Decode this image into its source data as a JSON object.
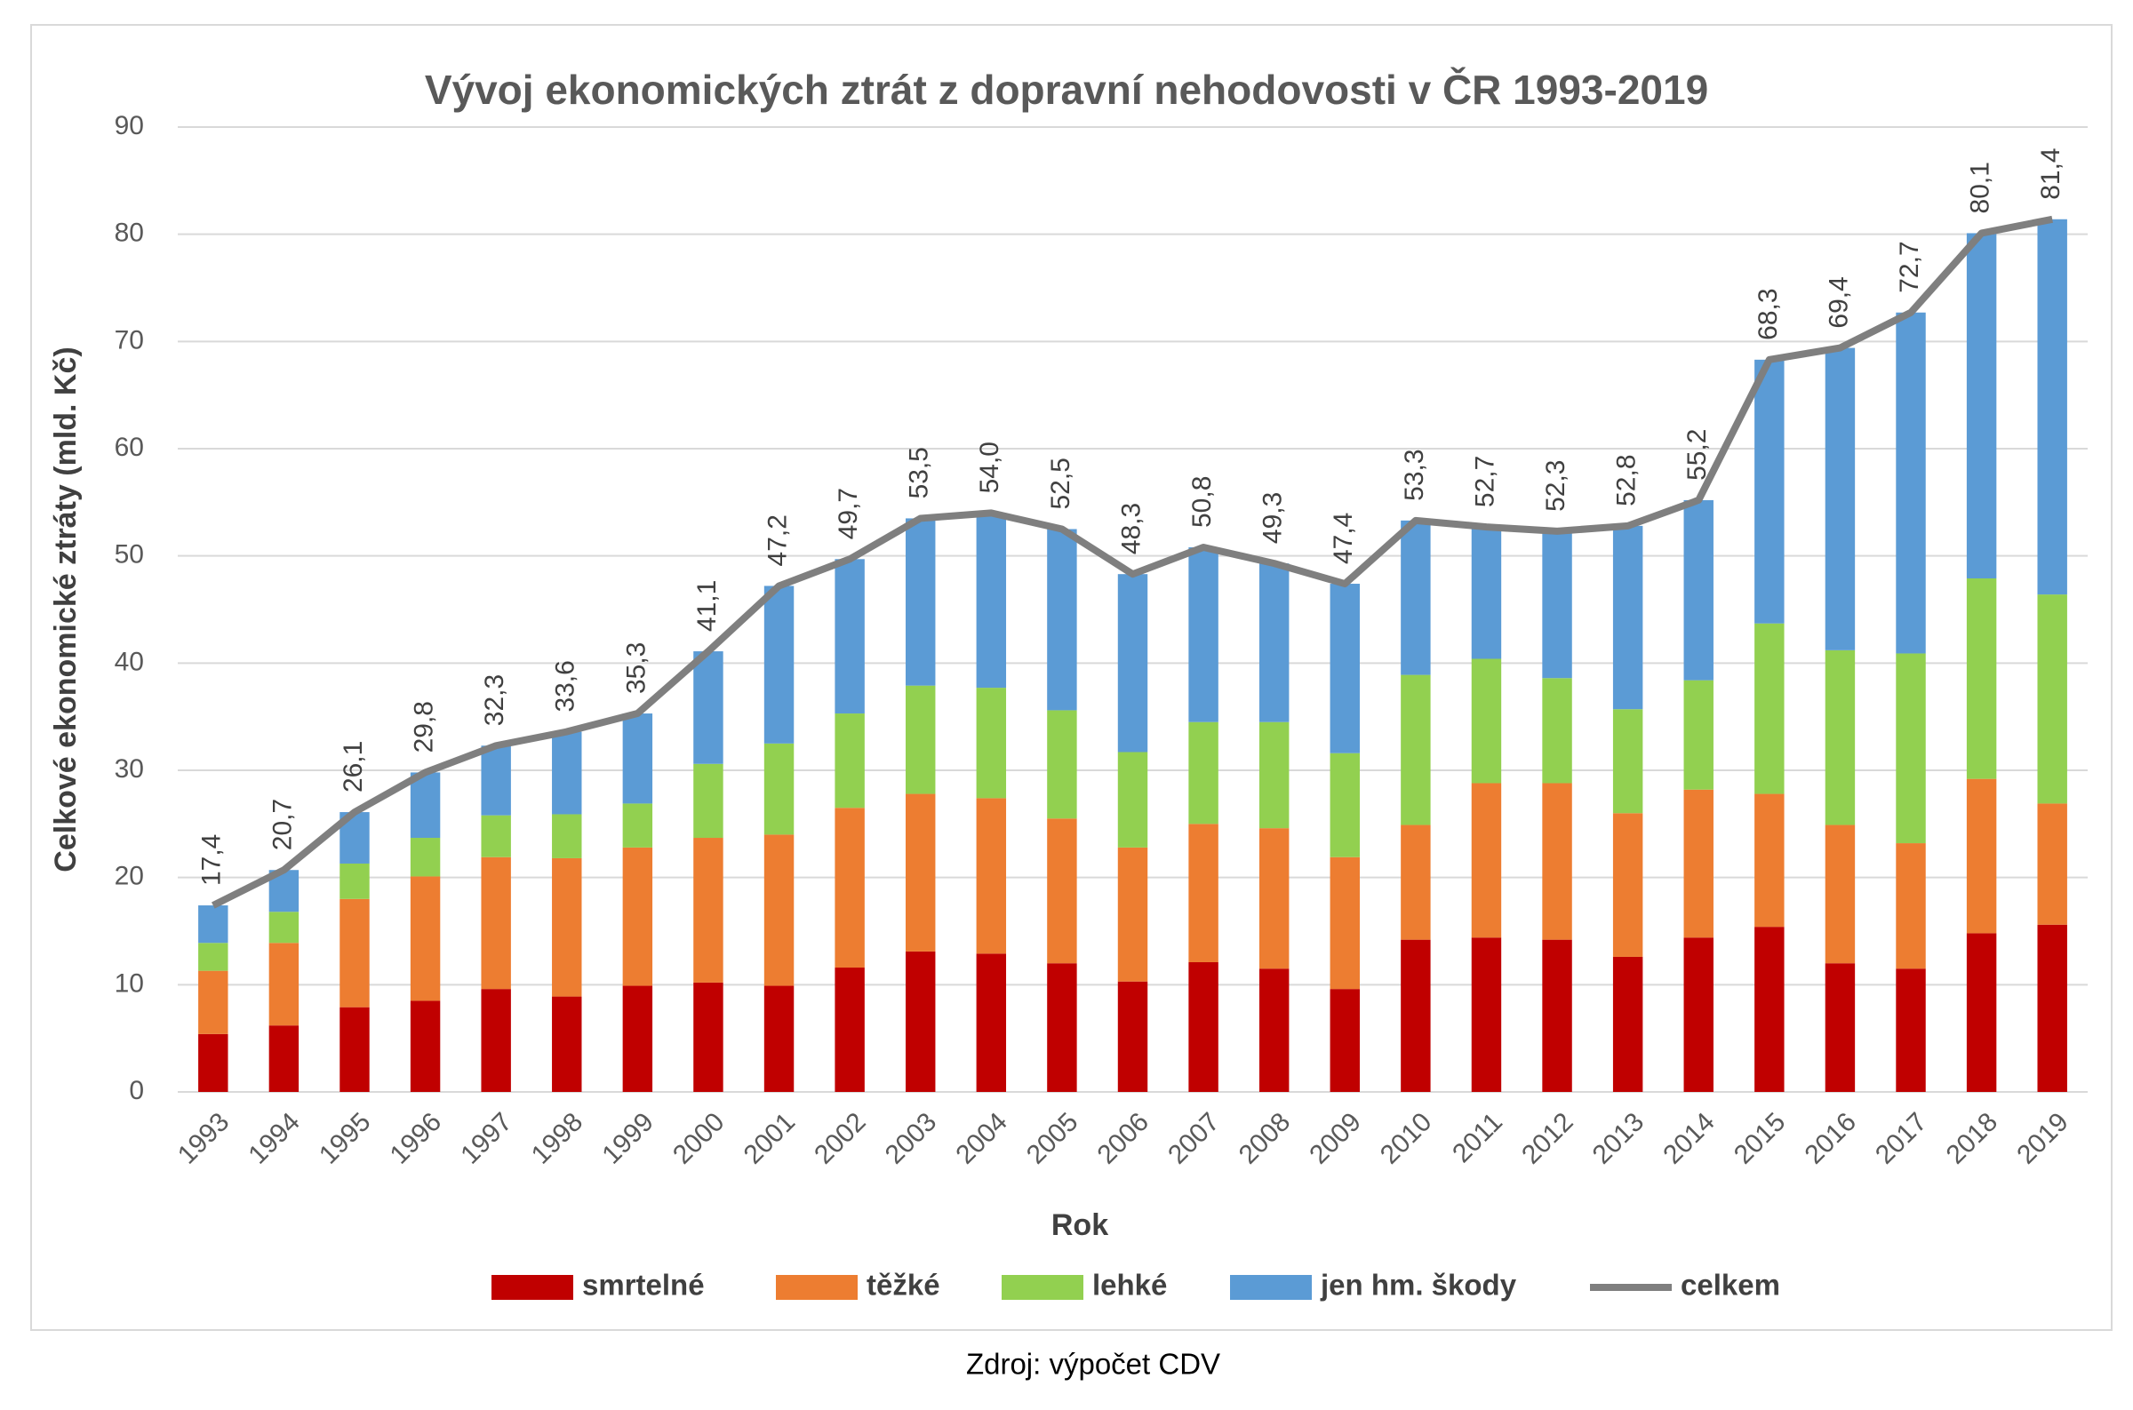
{
  "chart_data": {
    "type": "bar",
    "stacked": true,
    "title": "Vývoj ekonomických ztrát z dopravní nehodovosti v ČR 1993-2019",
    "x_label": "Rok",
    "y_label": "Celkové ekonomické ztráty (mld. Kč)",
    "source": "Zdroj: výpočet CDV",
    "categories": [
      "1993",
      "1994",
      "1995",
      "1996",
      "1997",
      "1998",
      "1999",
      "2000",
      "2001",
      "2002",
      "2003",
      "2004",
      "2005",
      "2006",
      "2007",
      "2008",
      "2009",
      "2010",
      "2011",
      "2012",
      "2013",
      "2014",
      "2015",
      "2016",
      "2017",
      "2018",
      "2019"
    ],
    "series": [
      {
        "name": "smrtelné",
        "color": "#c00000",
        "values": [
          5.4,
          6.2,
          7.9,
          8.5,
          9.6,
          8.9,
          9.9,
          10.2,
          9.9,
          11.6,
          13.1,
          12.9,
          12.0,
          10.3,
          12.1,
          11.5,
          9.6,
          14.2,
          14.4,
          14.2,
          12.6,
          14.4,
          15.4,
          12.0,
          11.5,
          14.8,
          15.6
        ]
      },
      {
        "name": "těžké",
        "color": "#ed7d31",
        "values": [
          5.9,
          7.7,
          10.1,
          11.6,
          12.3,
          12.9,
          12.9,
          13.5,
          14.1,
          14.9,
          14.7,
          14.5,
          13.5,
          12.5,
          12.9,
          13.1,
          12.3,
          10.7,
          14.4,
          14.6,
          13.4,
          13.8,
          12.4,
          12.9,
          11.7,
          14.4,
          11.3
        ]
      },
      {
        "name": "lehké",
        "color": "#92d050",
        "values": [
          2.6,
          2.9,
          3.3,
          3.6,
          3.9,
          4.1,
          4.1,
          6.9,
          8.5,
          8.8,
          10.1,
          10.3,
          10.1,
          8.9,
          9.5,
          9.9,
          9.7,
          14.0,
          11.6,
          9.8,
          9.7,
          10.2,
          15.9,
          16.3,
          17.7,
          18.7,
          19.5
        ]
      },
      {
        "name": "jen hm. škody",
        "color": "#5b9bd5",
        "values": [
          3.5,
          3.9,
          4.8,
          6.1,
          6.5,
          7.7,
          8.4,
          10.5,
          14.7,
          14.4,
          15.6,
          16.3,
          16.9,
          16.6,
          16.3,
          14.8,
          15.8,
          14.4,
          12.3,
          13.7,
          17.1,
          16.8,
          24.6,
          28.2,
          31.8,
          32.2,
          35.0
        ]
      },
      {
        "name": "celkem",
        "type": "line",
        "color": "#7f7f7f",
        "values": [
          17.4,
          20.7,
          26.1,
          29.8,
          32.3,
          33.6,
          35.3,
          41.1,
          47.2,
          49.7,
          53.5,
          54.0,
          52.5,
          48.3,
          50.8,
          49.3,
          47.4,
          53.3,
          52.7,
          52.3,
          52.8,
          55.2,
          68.3,
          69.4,
          72.7,
          80.1,
          81.4
        ],
        "value_labels": [
          "17,4",
          "20,7",
          "26,1",
          "29,8",
          "32,3",
          "33,6",
          "35,3",
          "41,1",
          "47,2",
          "49,7",
          "53,5",
          "54,0",
          "52,5",
          "48,3",
          "50,8",
          "49,3",
          "47,4",
          "53,3",
          "52,7",
          "52,3",
          "52,8",
          "55,2",
          "68,3",
          "69,4",
          "72,7",
          "80,1",
          "81,4"
        ]
      }
    ],
    "ylim": [
      0,
      90
    ],
    "yticks": [
      0,
      10,
      20,
      30,
      40,
      50,
      60,
      70,
      80,
      90
    ],
    "grid": true,
    "legend": "bottom"
  }
}
